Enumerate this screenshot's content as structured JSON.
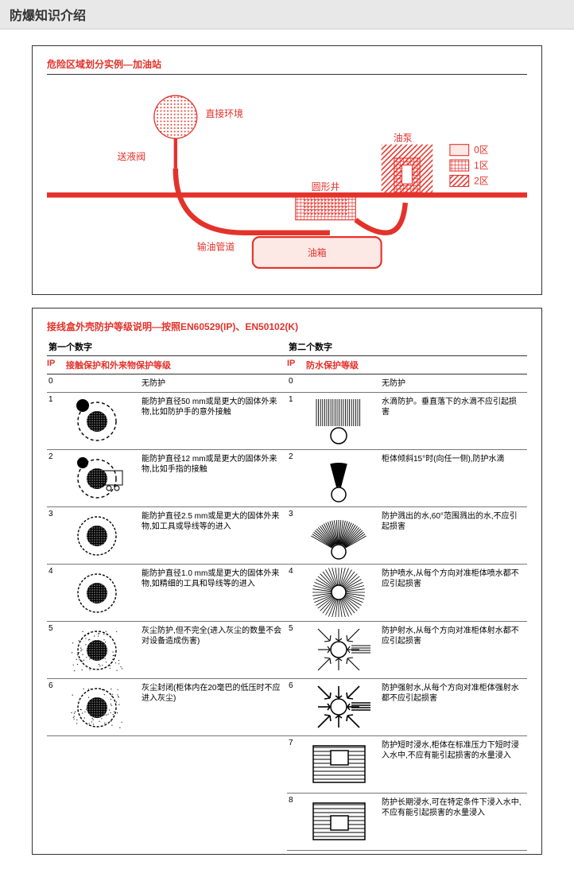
{
  "page_title": "防爆知识介绍",
  "colors": {
    "accent": "#e4322b",
    "headerBg": "#e8e8e8"
  },
  "diagram": {
    "title": "危险区域划分实例—加油站",
    "labels": {
      "env": "直接环境",
      "valve": "送液阀",
      "pump": "油泵",
      "well": "圆形井",
      "pipe": "输油管道",
      "tank": "油箱"
    },
    "legend": {
      "zone0": "0区",
      "zone1": "1区",
      "zone2": "2区"
    }
  },
  "ip_section": {
    "title": "接线盒外壳防护等级说明—按照EN60529(IP)、EN50102(K)",
    "first_digit_label": "第一个数字",
    "second_digit_label": "第二个数字",
    "ip_label": "IP",
    "left_header": "接触保护和外来物保护等级",
    "right_header": "防水保护等级",
    "left_rows": [
      {
        "n": "0",
        "desc": "无防护"
      },
      {
        "n": "1",
        "desc": "能防护直径50 mm或是更大的固体外来物,比如防护手的意外接触"
      },
      {
        "n": "2",
        "desc": "能防护直径12 mm或是更大的固体外来物,比如手指的接触"
      },
      {
        "n": "3",
        "desc": "能防护直径2.5 mm或是更大的固体外来物,如工具或导线等的进入"
      },
      {
        "n": "4",
        "desc": "能防护直径1.0 mm或是更大的固体外来物,如精细的工具和导线等的进入"
      },
      {
        "n": "5",
        "desc": "灰尘防护,但不完全(进入灰尘的数量不会对设备造成伤害)"
      },
      {
        "n": "6",
        "desc": "灰尘封闭(柜体内在20毫巴的低压时不应进入灰尘)"
      }
    ],
    "right_rows": [
      {
        "n": "0",
        "desc": "无防护"
      },
      {
        "n": "1",
        "desc": "水滴防护。垂直落下的水滴不应引起损害"
      },
      {
        "n": "2",
        "desc": "柜体倾斜15°时(向任一侧),防护水滴"
      },
      {
        "n": "3",
        "desc": "防护溅出的水,60°范围溅出的水,不应引起损害"
      },
      {
        "n": "4",
        "desc": "防护喷水,从每个方向对准柜体喷水都不应引起损害"
      },
      {
        "n": "5",
        "desc": "防护射水,从每个方向对准柜体射水都不应引起损害"
      },
      {
        "n": "6",
        "desc": "防护强射水,从每个方向对准柜体强射水都不应引起损害"
      },
      {
        "n": "7",
        "desc": "防护短时浸水,柜体在标准压力下短时浸入水中,不应有能引起损害的水量浸入"
      },
      {
        "n": "8",
        "desc": "防护长期浸水,可在特定条件下浸入水中,不应有能引起损害的水量浸入"
      }
    ]
  }
}
